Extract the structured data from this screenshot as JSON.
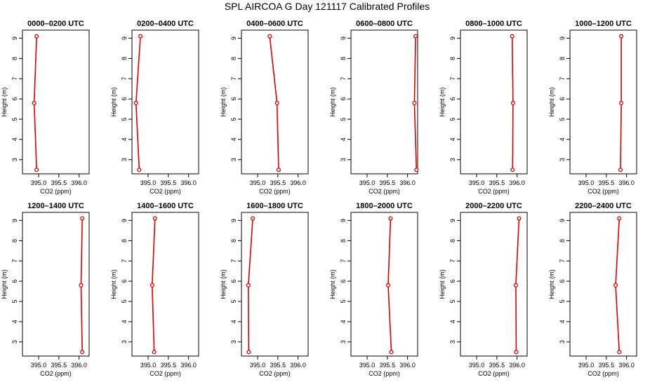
{
  "page": {
    "title": "SPL AIRCOA G  Day 121117  Calibrated Profiles"
  },
  "chart_data": [
    {
      "type": "line",
      "title": "0000–0200 UTC",
      "xlabel": "CO2 (ppm)",
      "ylabel": "Height (m)",
      "xlim": [
        394.6,
        396.25
      ],
      "ylim": [
        2.3,
        9.4
      ],
      "xticks": [
        "395.0",
        "395.5",
        "396.0"
      ],
      "yticks": [
        "3",
        "4",
        "5",
        "6",
        "7",
        "8",
        "9"
      ],
      "points": [
        {
          "x": 394.95,
          "y": 9.1
        },
        {
          "x": 394.89,
          "y": 5.8
        },
        {
          "x": 394.95,
          "y": 2.5
        }
      ]
    },
    {
      "type": "line",
      "title": "0200–0400 UTC",
      "xlabel": "CO2 (ppm)",
      "ylabel": "Height (m)",
      "xlim": [
        394.6,
        396.25
      ],
      "ylim": [
        2.3,
        9.4
      ],
      "xticks": [
        "395.0",
        "395.5",
        "396.0"
      ],
      "yticks": [
        "3",
        "4",
        "5",
        "6",
        "7",
        "8",
        "9"
      ],
      "points": [
        {
          "x": 394.81,
          "y": 9.1
        },
        {
          "x": 394.7,
          "y": 5.8
        },
        {
          "x": 394.78,
          "y": 2.5
        }
      ]
    },
    {
      "type": "line",
      "title": "0400–0600 UTC",
      "xlabel": "CO2 (ppm)",
      "ylabel": "Height (m)",
      "xlim": [
        394.6,
        396.25
      ],
      "ylim": [
        2.3,
        9.4
      ],
      "xticks": [
        "395.0",
        "395.5",
        "396.0"
      ],
      "yticks": [
        "3",
        "4",
        "5",
        "6",
        "7",
        "8",
        "9"
      ],
      "points": [
        {
          "x": 395.3,
          "y": 9.1
        },
        {
          "x": 395.48,
          "y": 5.8
        },
        {
          "x": 395.52,
          "y": 2.5
        }
      ]
    },
    {
      "type": "line",
      "title": "0600–0800 UTC",
      "xlabel": "CO2 (ppm)",
      "ylabel": "Height (m)",
      "xlim": [
        394.6,
        396.25
      ],
      "ylim": [
        2.3,
        9.4
      ],
      "xticks": [
        "395.0",
        "395.5",
        "396.0"
      ],
      "yticks": [
        "3",
        "4",
        "5",
        "6",
        "7",
        "8",
        "9"
      ],
      "points": [
        {
          "x": 396.2,
          "y": 9.1
        },
        {
          "x": 396.17,
          "y": 5.8
        },
        {
          "x": 396.22,
          "y": 2.5
        }
      ]
    },
    {
      "type": "line",
      "title": "0800–1000 UTC",
      "xlabel": "CO2 (ppm)",
      "ylabel": "Height (m)",
      "xlim": [
        394.6,
        396.25
      ],
      "ylim": [
        2.3,
        9.4
      ],
      "xticks": [
        "395.0",
        "395.5",
        "396.0"
      ],
      "yticks": [
        "3",
        "4",
        "5",
        "6",
        "7",
        "8",
        "9"
      ],
      "points": [
        {
          "x": 395.88,
          "y": 9.1
        },
        {
          "x": 395.9,
          "y": 5.8
        },
        {
          "x": 395.89,
          "y": 2.5
        }
      ]
    },
    {
      "type": "line",
      "title": "1000–1200 UTC",
      "xlabel": "CO2 (ppm)",
      "ylabel": "Height (m)",
      "xlim": [
        394.6,
        396.25
      ],
      "ylim": [
        2.3,
        9.4
      ],
      "xticks": [
        "395.0",
        "395.5",
        "396.0"
      ],
      "yticks": [
        "3",
        "4",
        "5",
        "6",
        "7",
        "8",
        "9"
      ],
      "points": [
        {
          "x": 395.87,
          "y": 9.1
        },
        {
          "x": 395.87,
          "y": 5.8
        },
        {
          "x": 395.85,
          "y": 2.5
        }
      ]
    },
    {
      "type": "line",
      "title": "1200–1400 UTC",
      "xlabel": "CO2 (ppm)",
      "ylabel": "Height (m)",
      "xlim": [
        394.6,
        396.25
      ],
      "ylim": [
        2.3,
        9.4
      ],
      "xticks": [
        "395.0",
        "395.5",
        "396.0"
      ],
      "yticks": [
        "3",
        "4",
        "5",
        "6",
        "7",
        "8",
        "9"
      ],
      "points": [
        {
          "x": 396.08,
          "y": 9.1
        },
        {
          "x": 396.05,
          "y": 5.8
        },
        {
          "x": 396.08,
          "y": 2.5
        }
      ]
    },
    {
      "type": "line",
      "title": "1400–1600 UTC",
      "xlabel": "CO2 (ppm)",
      "ylabel": "Height (m)",
      "xlim": [
        394.6,
        396.25
      ],
      "ylim": [
        2.3,
        9.4
      ],
      "xticks": [
        "395.0",
        "395.5",
        "396.0"
      ],
      "yticks": [
        "3",
        "4",
        "5",
        "6",
        "7",
        "8",
        "9"
      ],
      "points": [
        {
          "x": 395.17,
          "y": 9.1
        },
        {
          "x": 395.1,
          "y": 5.8
        },
        {
          "x": 395.15,
          "y": 2.5
        }
      ]
    },
    {
      "type": "line",
      "title": "1600–1800 UTC",
      "xlabel": "CO2 (ppm)",
      "ylabel": "Height (m)",
      "xlim": [
        394.6,
        396.25
      ],
      "ylim": [
        2.3,
        9.4
      ],
      "xticks": [
        "395.0",
        "395.5",
        "396.0"
      ],
      "yticks": [
        "3",
        "4",
        "5",
        "6",
        "7",
        "8",
        "9"
      ],
      "points": [
        {
          "x": 394.88,
          "y": 9.1
        },
        {
          "x": 394.77,
          "y": 5.8
        },
        {
          "x": 394.78,
          "y": 2.5
        }
      ]
    },
    {
      "type": "line",
      "title": "1800–2000 UTC",
      "xlabel": "CO2 (ppm)",
      "ylabel": "Height (m)",
      "xlim": [
        394.6,
        396.25
      ],
      "ylim": [
        2.3,
        9.4
      ],
      "xticks": [
        "395.0",
        "395.5",
        "396.0"
      ],
      "yticks": [
        "3",
        "4",
        "5",
        "6",
        "7",
        "8",
        "9"
      ],
      "points": [
        {
          "x": 395.58,
          "y": 9.1
        },
        {
          "x": 395.52,
          "y": 5.8
        },
        {
          "x": 395.6,
          "y": 2.5
        }
      ]
    },
    {
      "type": "line",
      "title": "2000–2200 UTC",
      "xlabel": "CO2 (ppm)",
      "ylabel": "Height (m)",
      "xlim": [
        394.6,
        396.25
      ],
      "ylim": [
        2.3,
        9.4
      ],
      "xticks": [
        "395.0",
        "395.5",
        "396.0"
      ],
      "yticks": [
        "3",
        "4",
        "5",
        "6",
        "7",
        "8",
        "9"
      ],
      "points": [
        {
          "x": 396.05,
          "y": 9.1
        },
        {
          "x": 395.97,
          "y": 5.8
        },
        {
          "x": 395.98,
          "y": 2.5
        }
      ]
    },
    {
      "type": "line",
      "title": "2200–2400 UTC",
      "xlabel": "CO2 (ppm)",
      "ylabel": "Height (m)",
      "xlim": [
        394.6,
        396.25
      ],
      "ylim": [
        2.3,
        9.4
      ],
      "xticks": [
        "395.0",
        "395.5",
        "396.0"
      ],
      "yticks": [
        "3",
        "4",
        "5",
        "6",
        "7",
        "8",
        "9"
      ],
      "points": [
        {
          "x": 395.82,
          "y": 9.1
        },
        {
          "x": 395.73,
          "y": 5.8
        },
        {
          "x": 395.82,
          "y": 2.5
        }
      ]
    }
  ],
  "colors": {
    "series": "#dd0000",
    "axis": "#000000"
  }
}
